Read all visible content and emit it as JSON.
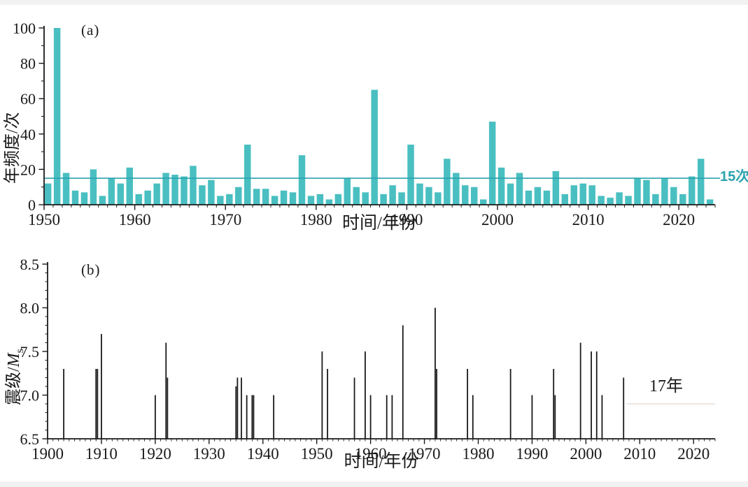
{
  "figure": {
    "background": "#ffffff"
  },
  "chart_data": [
    {
      "id": "a",
      "type": "bar",
      "panel_label": "(a)",
      "xlabel": "时间/年份",
      "ylabel": "年频度/次",
      "xlim": [
        1950,
        2024
      ],
      "ylim": [
        0,
        100
      ],
      "yticks": [
        0,
        20,
        40,
        60,
        80,
        100
      ],
      "xtick_labels": [
        1950,
        1960,
        1970,
        1980,
        1990,
        2000,
        2010,
        2020
      ],
      "grid": false,
      "bar_color": "#4abfc1",
      "axis_color": "#1a1a1a",
      "reference_line": {
        "value": 15,
        "label": "15次",
        "color": "#2aa2ae"
      },
      "years_start": 1950,
      "values": [
        12,
        100,
        18,
        8,
        7,
        20,
        5,
        15,
        12,
        21,
        6,
        8,
        12,
        18,
        17,
        16,
        22,
        11,
        14,
        5,
        6,
        10,
        34,
        9,
        9,
        5,
        8,
        7,
        28,
        5,
        6,
        3,
        6,
        15,
        10,
        7,
        65,
        6,
        11,
        7,
        34,
        12,
        10,
        7,
        26,
        18,
        11,
        10,
        3,
        47,
        21,
        12,
        18,
        8,
        10,
        8,
        19,
        6,
        11,
        12,
        11,
        5,
        4,
        7,
        5,
        15,
        14,
        6,
        15,
        10,
        6,
        16,
        26,
        3
      ]
    },
    {
      "id": "b",
      "type": "stem",
      "panel_label": "(b)",
      "xlabel": "时间/年份",
      "ylabel": "震级/Ms",
      "ylabel_parts": {
        "prefix": "震级/",
        "variable": "M",
        "subscript": "s"
      },
      "xlim": [
        1900,
        2024
      ],
      "ylim": [
        6.5,
        8.5
      ],
      "yticks": [
        6.5,
        7.0,
        7.5,
        8.0,
        8.5
      ],
      "xtick_labels": [
        1900,
        1910,
        1920,
        1930,
        1940,
        1950,
        1960,
        1970,
        1980,
        1990,
        2000,
        2010,
        2020
      ],
      "grid": false,
      "stem_color": "#1a1a1a",
      "axis_color": "#1a1a1a",
      "events": [
        {
          "year": 1903,
          "ms": 7.3
        },
        {
          "year": 1909,
          "ms": 7.3
        },
        {
          "year": 1909,
          "ms": 7.3
        },
        {
          "year": 1910,
          "ms": 7.7
        },
        {
          "year": 1920,
          "ms": 7.0
        },
        {
          "year": 1922,
          "ms": 7.6
        },
        {
          "year": 1922,
          "ms": 7.2
        },
        {
          "year": 1935,
          "ms": 7.1
        },
        {
          "year": 1935,
          "ms": 7.2
        },
        {
          "year": 1936,
          "ms": 7.2
        },
        {
          "year": 1937,
          "ms": 7.0
        },
        {
          "year": 1938,
          "ms": 7.0
        },
        {
          "year": 1938,
          "ms": 7.0
        },
        {
          "year": 1942,
          "ms": 7.0
        },
        {
          "year": 1951,
          "ms": 7.5
        },
        {
          "year": 1952,
          "ms": 7.3
        },
        {
          "year": 1957,
          "ms": 7.2
        },
        {
          "year": 1959,
          "ms": 7.5
        },
        {
          "year": 1960,
          "ms": 7.0
        },
        {
          "year": 1963,
          "ms": 7.0
        },
        {
          "year": 1964,
          "ms": 7.0
        },
        {
          "year": 1966,
          "ms": 7.8
        },
        {
          "year": 1972,
          "ms": 8.0
        },
        {
          "year": 1972,
          "ms": 7.3
        },
        {
          "year": 1978,
          "ms": 7.3
        },
        {
          "year": 1979,
          "ms": 7.0
        },
        {
          "year": 1986,
          "ms": 7.3
        },
        {
          "year": 1990,
          "ms": 7.0
        },
        {
          "year": 1994,
          "ms": 7.3
        },
        {
          "year": 1994,
          "ms": 7.0
        },
        {
          "year": 1999,
          "ms": 7.6
        },
        {
          "year": 2001,
          "ms": 7.5
        },
        {
          "year": 2002,
          "ms": 7.5
        },
        {
          "year": 2003,
          "ms": 7.0
        },
        {
          "year": 2007,
          "ms": 7.2
        }
      ],
      "gap_annotation": {
        "label": "17年",
        "line_from_year": 2007.6,
        "line_to_year": 2024,
        "line_level": 6.9,
        "line_color": "#e7dfda"
      }
    }
  ]
}
